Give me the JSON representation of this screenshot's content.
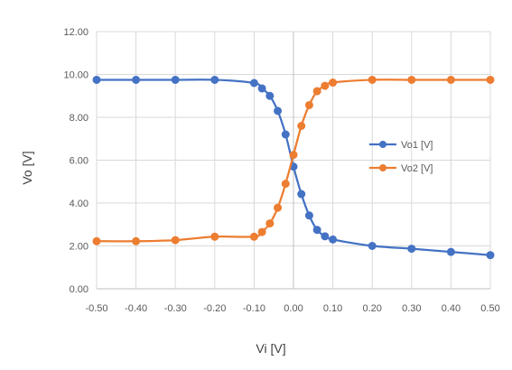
{
  "chart_data": {
    "type": "line",
    "title": "",
    "xlabel": "Vi [V]",
    "ylabel": "Vo [V]",
    "xlim": [
      -0.5,
      0.5
    ],
    "ylim": [
      0,
      12
    ],
    "x_ticks": [
      "-0.50",
      "-0.40",
      "-0.30",
      "-0.20",
      "-0.10",
      "0.00",
      "0.10",
      "0.20",
      "0.30",
      "0.40",
      "0.50"
    ],
    "y_ticks": [
      "0.00",
      "2.00",
      "4.00",
      "6.00",
      "8.00",
      "10.00",
      "12.00"
    ],
    "grid": {
      "horizontal": true,
      "vertical": true
    },
    "legend": "right",
    "series": [
      {
        "name": "Vo1 [V]",
        "color": "#4472C4",
        "x": [
          -0.5,
          -0.4,
          -0.3,
          -0.2,
          -0.1,
          -0.08,
          -0.06,
          -0.04,
          -0.02,
          0.0,
          0.02,
          0.04,
          0.06,
          0.08,
          0.1,
          0.2,
          0.3,
          0.4,
          0.5
        ],
        "y": [
          9.75,
          9.75,
          9.75,
          9.75,
          9.6,
          9.35,
          9.0,
          8.3,
          7.2,
          5.7,
          4.42,
          3.42,
          2.75,
          2.45,
          2.3,
          2.0,
          1.87,
          1.72,
          1.57
        ]
      },
      {
        "name": "Vo2 [V]",
        "color": "#ED7D31",
        "x": [
          -0.5,
          -0.4,
          -0.3,
          -0.2,
          -0.1,
          -0.08,
          -0.06,
          -0.04,
          -0.02,
          0.0,
          0.02,
          0.04,
          0.06,
          0.08,
          0.1,
          0.2,
          0.3,
          0.4,
          0.5
        ],
        "y": [
          2.22,
          2.22,
          2.27,
          2.43,
          2.43,
          2.65,
          3.05,
          3.78,
          4.9,
          6.25,
          7.6,
          8.57,
          9.22,
          9.47,
          9.62,
          9.75,
          9.75,
          9.75,
          9.75
        ]
      }
    ]
  }
}
